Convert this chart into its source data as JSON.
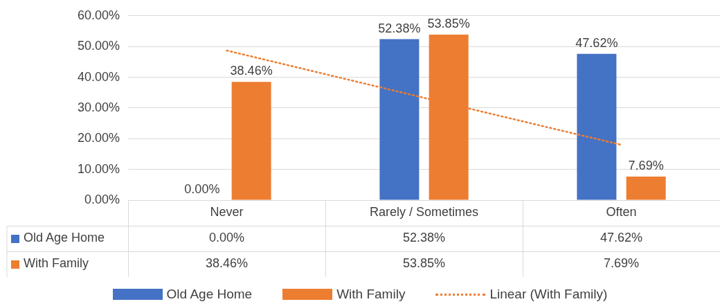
{
  "chart_data": {
    "type": "bar",
    "categories": [
      "Never",
      "Rarely / Sometimes",
      "Often"
    ],
    "series": [
      {
        "name": "Old Age Home",
        "color": "#4472c4",
        "values": [
          0,
          52.38,
          47.62
        ],
        "value_labels": [
          "0.00%",
          "52.38%",
          "47.62%"
        ]
      },
      {
        "name": "With Family",
        "color": "#ed7d31",
        "values": [
          38.46,
          53.85,
          7.69
        ],
        "value_labels": [
          "38.46%",
          "53.85%",
          "7.69%"
        ]
      },
      {
        "name": "Linear (With Family)",
        "type": "line",
        "line_style": "dotted",
        "color": "#ed7d31",
        "values": [
          48.7,
          33.3,
          18.0
        ]
      }
    ],
    "ylim": [
      0,
      60
    ],
    "yticks": [
      {
        "value": 0,
        "label": "0.00%"
      },
      {
        "value": 10,
        "label": "10.00%"
      },
      {
        "value": 20,
        "label": "20.00%"
      },
      {
        "value": 30,
        "label": "30.00%"
      },
      {
        "value": 40,
        "label": "40.00%"
      },
      {
        "value": 50,
        "label": "50.00%"
      },
      {
        "value": 60,
        "label": "60.00%"
      }
    ],
    "grid": "y",
    "legend": "bottom"
  }
}
